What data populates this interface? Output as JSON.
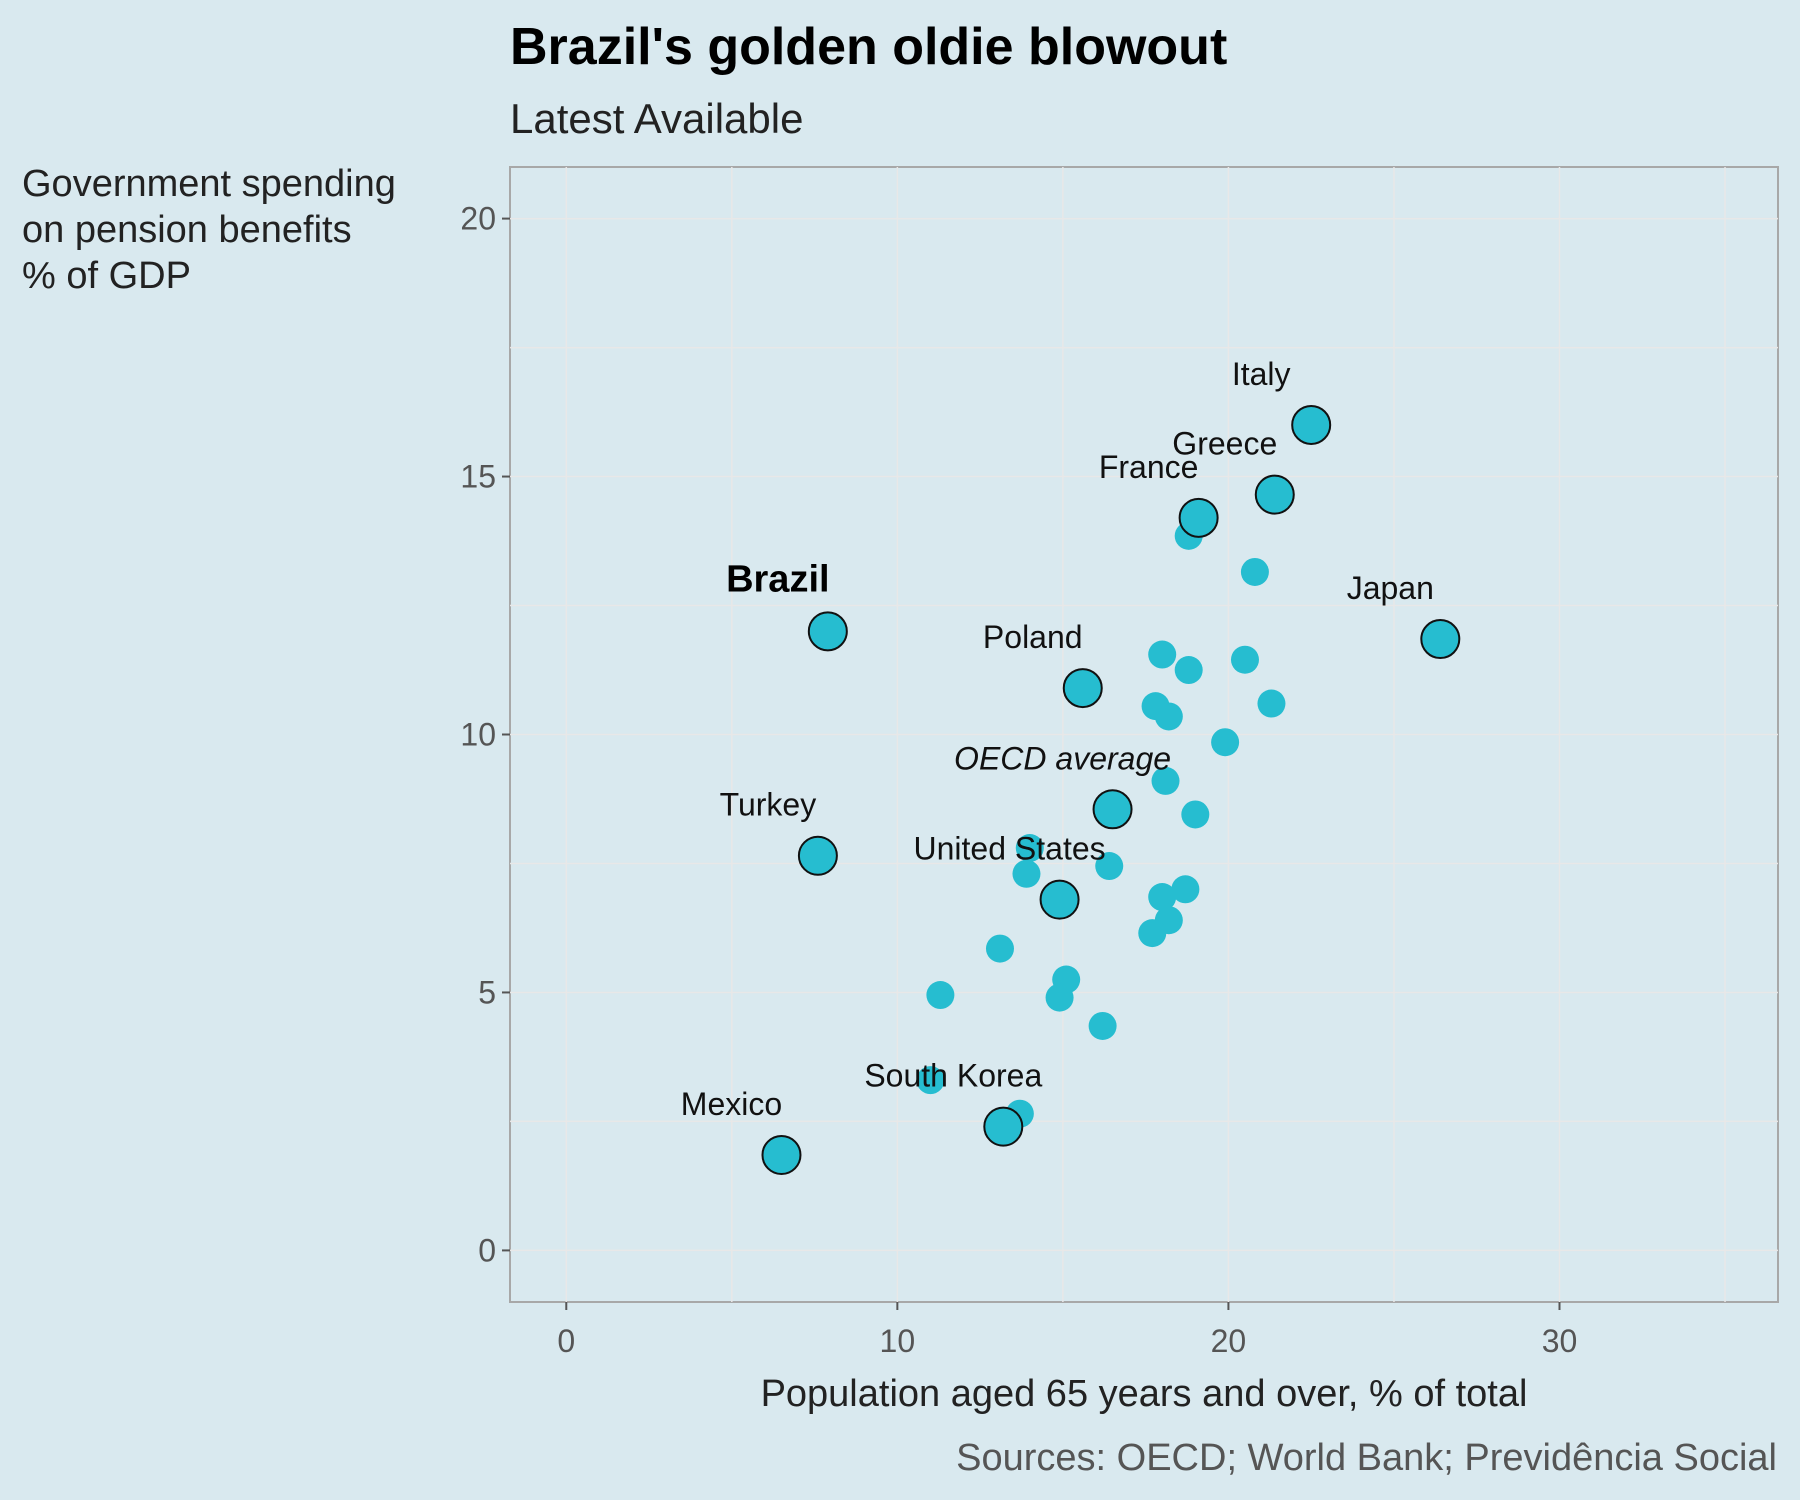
{
  "chart_data": {
    "type": "scatter",
    "title": "Brazil's golden oldie blowout",
    "subtitle": "Latest Available",
    "ylabel_lines": [
      "Government spending",
      "on pension benefits",
      "% of GDP"
    ],
    "xlabel": "Population aged 65 years and over, % of total",
    "source": "Sources: OECD; World Bank; Previdência Social",
    "xlim": [
      -1.7,
      36.6
    ],
    "ylim": [
      -1,
      21
    ],
    "xticks": [
      0,
      10,
      20,
      30
    ],
    "yticks": [
      0,
      5,
      10,
      15,
      20
    ],
    "grid": true,
    "labeled_points": [
      {
        "label": "Italy",
        "x": 22.5,
        "y": 16.0
      },
      {
        "label": "Greece",
        "x": 21.4,
        "y": 14.65
      },
      {
        "label": "France",
        "x": 19.1,
        "y": 14.2
      },
      {
        "label": "Japan",
        "x": 26.4,
        "y": 11.85
      },
      {
        "label": "Brazil",
        "x": 7.9,
        "y": 12.0,
        "bold": true
      },
      {
        "label": "Poland",
        "x": 15.6,
        "y": 10.9
      },
      {
        "label": "OECD average",
        "x": 16.5,
        "y": 8.55,
        "italic": true
      },
      {
        "label": "Turkey",
        "x": 7.6,
        "y": 7.65
      },
      {
        "label": "United States",
        "x": 14.9,
        "y": 6.8
      },
      {
        "label": "South Korea",
        "x": 13.2,
        "y": 2.4
      },
      {
        "label": "Mexico",
        "x": 6.5,
        "y": 1.85
      }
    ],
    "other_points": [
      {
        "x": 18.8,
        "y": 13.85
      },
      {
        "x": 20.8,
        "y": 13.15
      },
      {
        "x": 18.0,
        "y": 11.55
      },
      {
        "x": 18.8,
        "y": 11.25
      },
      {
        "x": 20.5,
        "y": 11.45
      },
      {
        "x": 21.3,
        "y": 10.6
      },
      {
        "x": 17.8,
        "y": 10.55
      },
      {
        "x": 18.2,
        "y": 10.35
      },
      {
        "x": 19.9,
        "y": 9.85
      },
      {
        "x": 18.1,
        "y": 9.1
      },
      {
        "x": 19.0,
        "y": 8.45
      },
      {
        "x": 14.0,
        "y": 7.8
      },
      {
        "x": 13.9,
        "y": 7.3
      },
      {
        "x": 16.4,
        "y": 7.45
      },
      {
        "x": 18.0,
        "y": 6.85
      },
      {
        "x": 18.7,
        "y": 7.0
      },
      {
        "x": 18.2,
        "y": 6.4
      },
      {
        "x": 17.7,
        "y": 6.15
      },
      {
        "x": 13.1,
        "y": 5.85
      },
      {
        "x": 11.3,
        "y": 4.95
      },
      {
        "x": 15.1,
        "y": 5.25
      },
      {
        "x": 14.9,
        "y": 4.9
      },
      {
        "x": 16.2,
        "y": 4.35
      },
      {
        "x": 11.0,
        "y": 3.3
      },
      {
        "x": 13.7,
        "y": 2.65
      }
    ]
  }
}
